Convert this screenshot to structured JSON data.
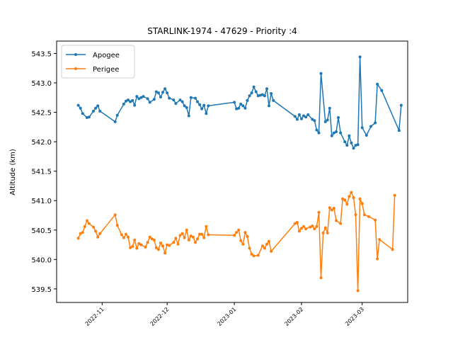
{
  "chart_data": {
    "type": "line",
    "title": "STARLINK-1974 - 47629 - Priority :4",
    "xlabel": "",
    "ylabel": "Altitude (km)",
    "x_axis_type": "date",
    "xlim": [
      "2022-10-11",
      "2023-03-22"
    ],
    "ylim": [
      539.27,
      543.71
    ],
    "xticks": [
      "2022-11-01",
      "2022-12-01",
      "2023-01-01",
      "2023-02-01",
      "2023-03-01"
    ],
    "xtick_labels": [
      "2022-11",
      "2022-12",
      "2023-01",
      "2023-02",
      "2023-03"
    ],
    "yticks": [
      539.5,
      540.0,
      540.5,
      541.0,
      541.5,
      542.0,
      542.5,
      543.0,
      543.5
    ],
    "ytick_labels": [
      "539.5",
      "540.0",
      "540.5",
      "541.0",
      "541.5",
      "542.0",
      "542.5",
      "543.0",
      "543.5"
    ],
    "grid": false,
    "legend_position": "top-left",
    "series": [
      {
        "name": "Apogee",
        "color": "#1f77b4",
        "points": [
          [
            "2022-10-21",
            542.62
          ],
          [
            "2022-10-22",
            542.57
          ],
          [
            "2022-10-23",
            542.48
          ],
          [
            "2022-10-25",
            542.41
          ],
          [
            "2022-10-26",
            542.42
          ],
          [
            "2022-10-28",
            542.52
          ],
          [
            "2022-10-29",
            542.57
          ],
          [
            "2022-10-30",
            542.61
          ],
          [
            "2022-10-31",
            542.52
          ],
          [
            "2022-11-07",
            542.34
          ],
          [
            "2022-11-08",
            542.45
          ],
          [
            "2022-11-11",
            542.64
          ],
          [
            "2022-11-12",
            542.69
          ],
          [
            "2022-11-13",
            542.71
          ],
          [
            "2022-11-14",
            542.68
          ],
          [
            "2022-11-15",
            542.7
          ],
          [
            "2022-11-16",
            542.62
          ],
          [
            "2022-11-17",
            542.77
          ],
          [
            "2022-11-18",
            542.73
          ],
          [
            "2022-11-19",
            542.75
          ],
          [
            "2022-11-20",
            542.77
          ],
          [
            "2022-11-22",
            542.73
          ],
          [
            "2022-11-23",
            542.67
          ],
          [
            "2022-11-25",
            542.72
          ],
          [
            "2022-11-26",
            542.85
          ],
          [
            "2022-11-27",
            542.83
          ],
          [
            "2022-11-28",
            542.76
          ],
          [
            "2022-11-29",
            542.84
          ],
          [
            "2022-11-30",
            542.9
          ],
          [
            "2022-12-01",
            542.83
          ],
          [
            "2022-12-02",
            542.74
          ],
          [
            "2022-12-04",
            542.71
          ],
          [
            "2022-12-05",
            542.65
          ],
          [
            "2022-12-07",
            542.71
          ],
          [
            "2022-12-08",
            542.68
          ],
          [
            "2022-12-09",
            542.61
          ],
          [
            "2022-12-10",
            542.58
          ],
          [
            "2022-12-11",
            542.44
          ],
          [
            "2022-12-12",
            542.75
          ],
          [
            "2022-12-14",
            542.74
          ],
          [
            "2022-12-15",
            542.68
          ],
          [
            "2022-12-16",
            542.63
          ],
          [
            "2022-12-17",
            542.56
          ],
          [
            "2022-12-18",
            542.62
          ],
          [
            "2022-12-19",
            542.48
          ],
          [
            "2022-12-20",
            542.61
          ],
          [
            "2023-01-01",
            542.67
          ],
          [
            "2023-01-02",
            542.56
          ],
          [
            "2023-01-03",
            542.57
          ],
          [
            "2023-01-04",
            542.64
          ],
          [
            "2023-01-05",
            542.61
          ],
          [
            "2023-01-06",
            542.57
          ],
          [
            "2023-01-07",
            542.7
          ],
          [
            "2023-01-08",
            542.78
          ],
          [
            "2023-01-09",
            542.83
          ],
          [
            "2023-01-10",
            542.93
          ],
          [
            "2023-01-11",
            542.85
          ],
          [
            "2023-01-12",
            542.78
          ],
          [
            "2023-01-13",
            542.79
          ],
          [
            "2023-01-14",
            542.8
          ],
          [
            "2023-01-15",
            542.78
          ],
          [
            "2023-01-16",
            542.9
          ],
          [
            "2023-01-17",
            542.61
          ],
          [
            "2023-01-18",
            542.82
          ],
          [
            "2023-01-19",
            542.7
          ],
          [
            "2023-01-29",
            542.43
          ],
          [
            "2023-01-30",
            542.38
          ],
          [
            "2023-01-31",
            542.46
          ],
          [
            "2023-02-01",
            542.39
          ],
          [
            "2023-02-02",
            542.44
          ],
          [
            "2023-02-03",
            542.42
          ],
          [
            "2023-02-04",
            542.46
          ],
          [
            "2023-02-06",
            542.38
          ],
          [
            "2023-02-07",
            542.36
          ],
          [
            "2023-02-08",
            542.2
          ],
          [
            "2023-02-09",
            542.15
          ],
          [
            "2023-02-10",
            543.16
          ],
          [
            "2023-02-12",
            542.34
          ],
          [
            "2023-02-13",
            542.37
          ],
          [
            "2023-02-14",
            542.57
          ],
          [
            "2023-02-15",
            542.1
          ],
          [
            "2023-02-16",
            542.15
          ],
          [
            "2023-02-17",
            542.17
          ],
          [
            "2023-02-18",
            542.41
          ],
          [
            "2023-02-19",
            542.15
          ],
          [
            "2023-02-21",
            542.0
          ],
          [
            "2023-02-22",
            541.94
          ],
          [
            "2023-02-23",
            542.1
          ],
          [
            "2023-02-24",
            541.98
          ],
          [
            "2023-02-25",
            541.89
          ],
          [
            "2023-02-26",
            541.94
          ],
          [
            "2023-02-27",
            541.95
          ],
          [
            "2023-02-28",
            543.44
          ],
          [
            "2023-03-01",
            542.24
          ],
          [
            "2023-03-03",
            542.11
          ],
          [
            "2023-03-05",
            542.26
          ],
          [
            "2023-03-07",
            542.32
          ],
          [
            "2023-03-08",
            542.98
          ],
          [
            "2023-03-10",
            542.87
          ],
          [
            "2023-03-18",
            542.19
          ],
          [
            "2023-03-19",
            542.62
          ]
        ]
      },
      {
        "name": "Perigee",
        "color": "#ff7f0e",
        "points": [
          [
            "2022-10-21",
            540.36
          ],
          [
            "2022-10-22",
            540.44
          ],
          [
            "2022-10-23",
            540.46
          ],
          [
            "2022-10-24",
            540.56
          ],
          [
            "2022-10-25",
            540.66
          ],
          [
            "2022-10-26",
            540.61
          ],
          [
            "2022-10-28",
            540.55
          ],
          [
            "2022-10-29",
            540.48
          ],
          [
            "2022-10-30",
            540.38
          ],
          [
            "2022-10-31",
            540.44
          ],
          [
            "2022-11-07",
            540.76
          ],
          [
            "2022-11-08",
            540.58
          ],
          [
            "2022-11-10",
            540.42
          ],
          [
            "2022-11-11",
            540.37
          ],
          [
            "2022-11-12",
            540.43
          ],
          [
            "2022-11-13",
            540.38
          ],
          [
            "2022-11-14",
            540.2
          ],
          [
            "2022-11-15",
            540.22
          ],
          [
            "2022-11-16",
            540.33
          ],
          [
            "2022-11-17",
            540.19
          ],
          [
            "2022-11-18",
            540.27
          ],
          [
            "2022-11-19",
            540.25
          ],
          [
            "2022-11-21",
            540.21
          ],
          [
            "2022-11-22",
            540.29
          ],
          [
            "2022-11-23",
            540.38
          ],
          [
            "2022-11-24",
            540.35
          ],
          [
            "2022-11-25",
            540.33
          ],
          [
            "2022-11-26",
            540.2
          ],
          [
            "2022-11-27",
            540.17
          ],
          [
            "2022-11-28",
            540.28
          ],
          [
            "2022-11-29",
            540.23
          ],
          [
            "2022-11-30",
            540.11
          ],
          [
            "2022-12-01",
            540.25
          ],
          [
            "2022-12-02",
            540.24
          ],
          [
            "2022-12-04",
            540.29
          ],
          [
            "2022-12-05",
            540.36
          ],
          [
            "2022-12-06",
            540.26
          ],
          [
            "2022-12-07",
            540.41
          ],
          [
            "2022-12-08",
            540.44
          ],
          [
            "2022-12-09",
            540.37
          ],
          [
            "2022-12-10",
            540.5
          ],
          [
            "2022-12-11",
            540.33
          ],
          [
            "2022-12-12",
            540.4
          ],
          [
            "2022-12-13",
            540.38
          ],
          [
            "2022-12-14",
            540.29
          ],
          [
            "2022-12-15",
            540.35
          ],
          [
            "2022-12-16",
            540.43
          ],
          [
            "2022-12-17",
            540.43
          ],
          [
            "2022-12-18",
            540.37
          ],
          [
            "2022-12-19",
            540.56
          ],
          [
            "2022-12-20",
            540.42
          ],
          [
            "2023-01-01",
            540.41
          ],
          [
            "2023-01-02",
            540.46
          ],
          [
            "2023-01-03",
            540.5
          ],
          [
            "2023-01-04",
            540.32
          ],
          [
            "2023-01-05",
            540.26
          ],
          [
            "2023-01-06",
            540.46
          ],
          [
            "2023-01-07",
            540.39
          ],
          [
            "2023-01-08",
            540.19
          ],
          [
            "2023-01-09",
            540.09
          ],
          [
            "2023-01-10",
            540.06
          ],
          [
            "2023-01-12",
            540.07
          ],
          [
            "2023-01-14",
            540.23
          ],
          [
            "2023-01-15",
            540.19
          ],
          [
            "2023-01-16",
            540.26
          ],
          [
            "2023-01-17",
            540.31
          ],
          [
            "2023-01-18",
            540.14
          ],
          [
            "2023-01-29",
            540.61
          ],
          [
            "2023-01-30",
            540.63
          ],
          [
            "2023-01-31",
            540.48
          ],
          [
            "2023-02-01",
            540.53
          ],
          [
            "2023-02-02",
            540.56
          ],
          [
            "2023-02-03",
            540.52
          ],
          [
            "2023-02-05",
            540.55
          ],
          [
            "2023-02-06",
            540.57
          ],
          [
            "2023-02-07",
            540.52
          ],
          [
            "2023-02-08",
            540.56
          ],
          [
            "2023-02-09",
            540.8
          ],
          [
            "2023-02-10",
            539.69
          ],
          [
            "2023-02-11",
            540.45
          ],
          [
            "2023-02-12",
            540.54
          ],
          [
            "2023-02-13",
            540.45
          ],
          [
            "2023-02-14",
            540.88
          ],
          [
            "2023-02-15",
            540.84
          ],
          [
            "2023-02-16",
            540.87
          ],
          [
            "2023-02-17",
            540.66
          ],
          [
            "2023-02-19",
            540.61
          ],
          [
            "2023-02-20",
            541.03
          ],
          [
            "2023-02-21",
            541.01
          ],
          [
            "2023-02-22",
            540.94
          ],
          [
            "2023-02-23",
            541.07
          ],
          [
            "2023-02-24",
            541.14
          ],
          [
            "2023-02-25",
            541.05
          ],
          [
            "2023-02-26",
            540.76
          ],
          [
            "2023-02-27",
            539.47
          ],
          [
            "2023-02-28",
            541.03
          ],
          [
            "2023-03-01",
            540.95
          ],
          [
            "2023-03-02",
            540.76
          ],
          [
            "2023-03-04",
            540.73
          ],
          [
            "2023-03-07",
            540.67
          ],
          [
            "2023-03-08",
            540.01
          ],
          [
            "2023-03-09",
            540.34
          ],
          [
            "2023-03-15",
            540.17
          ],
          [
            "2023-03-16",
            541.09
          ]
        ]
      }
    ]
  }
}
